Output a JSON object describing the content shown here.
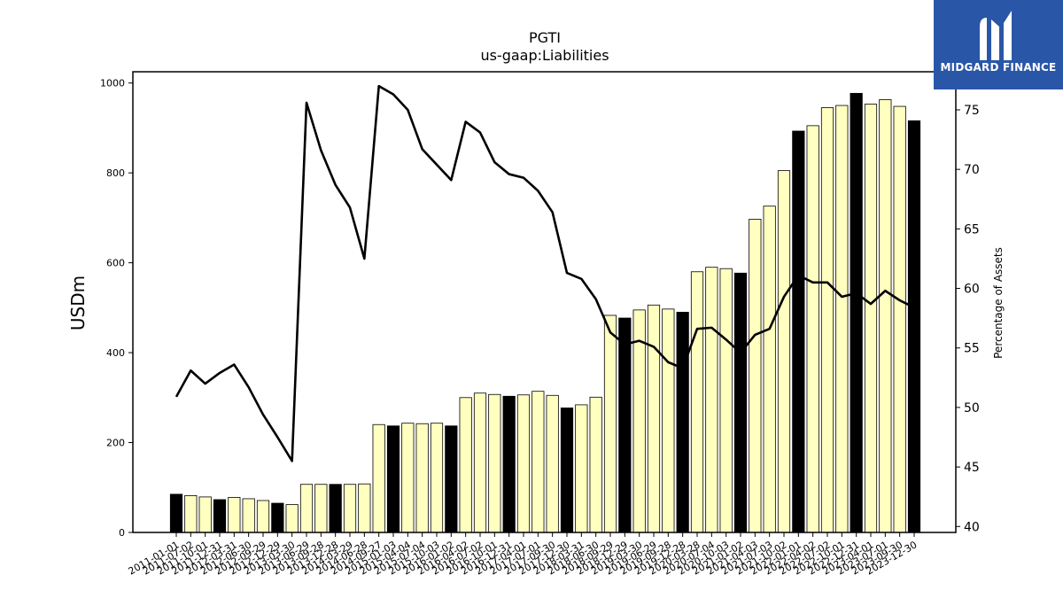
{
  "chart_data": {
    "type": "bar",
    "title": "PGTI",
    "subtitle": "us-gaap:Liabilities",
    "ylabel": "USDm",
    "y2label": "Percentage of Assets",
    "ylim": [
      0,
      1025
    ],
    "y2lim": [
      39.5,
      78.2
    ],
    "yticks": [
      0,
      200,
      400,
      600,
      800,
      1000
    ],
    "y2ticks": [
      40,
      45,
      50,
      55,
      60,
      65,
      70,
      75
    ],
    "categories": [
      "2011-01-01",
      "2011-07-02",
      "2011-10-01",
      "2011-12-31",
      "2012-03-31",
      "2012-06-30",
      "2012-09-29",
      "2012-12-29",
      "2013-03-30",
      "2013-06-29",
      "2013-09-28",
      "2013-12-28",
      "2014-03-29",
      "2014-06-28",
      "2014-09-27",
      "2015-01-03",
      "2015-04-04",
      "2015-07-04",
      "2015-10-03",
      "2016-01-02",
      "2016-04-02",
      "2016-07-02",
      "2016-10-01",
      "2016-12-31",
      "2017-04-01",
      "2017-07-01",
      "2017-09-30",
      "2017-12-30",
      "2018-03-31",
      "2018-06-30",
      "2018-09-29",
      "2018-12-29",
      "2019-03-30",
      "2019-06-29",
      "2019-09-28",
      "2019-12-28",
      "2020-03-28",
      "2020-07-04",
      "2020-10-03",
      "2021-01-02",
      "2021-04-03",
      "2021-07-03",
      "2021-10-02",
      "2022-01-01",
      "2022-04-02",
      "2022-07-02",
      "2022-10-01",
      "2022-12-31",
      "2023-04-01",
      "2023-07-01",
      "2023-09-30",
      "2023-12-30"
    ],
    "xlabels_shown": [
      "2011-01-01",
      "2011-07-02",
      "2011-10-01",
      "2011-12-31",
      "2012-03-31",
      "2012-06-30",
      "2012-09-29",
      "2012-12-29",
      "2013-03-30",
      "2013-06-29",
      "2013-09-28",
      "2013-12-28",
      "2014-03-29",
      "2014-06-28",
      "2014-09-27",
      "2015-01-03",
      "2015-04-04",
      "2015-07-04",
      "2015-10-03",
      "2016-01-02",
      "2016-04-02",
      "2016-07-02",
      "2016-10-01",
      "2016-12-31",
      "2017-04-01",
      "2017-07-01",
      "2017-09-30",
      "2017-12-30",
      "2018-03-31",
      "2018-06-30",
      "2018-09-29",
      "2018-12-29",
      "2019-03-30",
      "2019-06-29",
      "2019-09-28",
      "2019-12-28",
      "2020-03-28",
      "2020-07-04",
      "2020-10-03",
      "2021-01-02",
      "2021-04-03",
      "2021-07-03",
      "2021-10-02",
      "2022-01-01",
      "2022-04-02",
      "2022-07-02",
      "2022-10-01",
      "2022-12-31",
      "2023-04-01",
      "2023-07-01",
      "2023-09-30",
      "2023-12-30"
    ],
    "series": [
      {
        "kind": "bar",
        "values": [
          85,
          82,
          79,
          73,
          78,
          75,
          71,
          65,
          62,
          107,
          107,
          107,
          107,
          108,
          240,
          237,
          243,
          242,
          243,
          237,
          300,
          310,
          307,
          303,
          306,
          314,
          305,
          277,
          284,
          301,
          483,
          477,
          495,
          506,
          497,
          490,
          580,
          590,
          587,
          577,
          697,
          726,
          805,
          893,
          905,
          945,
          950,
          977,
          953,
          963,
          948,
          916
        ],
        "highlight": [
          true,
          false,
          false,
          true,
          false,
          false,
          false,
          true,
          false,
          false,
          false,
          true,
          false,
          false,
          false,
          true,
          false,
          false,
          false,
          true,
          false,
          false,
          false,
          true,
          false,
          false,
          false,
          true,
          false,
          false,
          false,
          true,
          false,
          false,
          false,
          true,
          false,
          false,
          false,
          true,
          false,
          false,
          false,
          true,
          false,
          false,
          false,
          true,
          false,
          false,
          false,
          true
        ]
      },
      {
        "kind": "line",
        "axis": "right",
        "values": [
          50.9,
          53.1,
          52.0,
          52.9,
          53.6,
          51.7,
          49.4,
          47.5,
          45.5,
          75.6,
          71.6,
          68.7,
          66.8,
          62.5,
          77.0,
          76.3,
          75.0,
          71.7,
          70.4,
          69.1,
          74.0,
          73.1,
          70.6,
          69.6,
          69.3,
          68.2,
          66.4,
          61.3,
          60.8,
          59.1,
          56.3,
          55.3,
          55.6,
          55.1,
          53.8,
          53.3,
          56.6,
          56.7,
          55.7,
          54.6,
          56.1,
          56.6,
          59.3,
          61.1,
          60.5,
          60.5,
          59.3,
          59.6,
          58.7,
          59.8,
          59.0,
          58.4
        ]
      }
    ],
    "colors": {
      "bar_fill": "#ffffc0",
      "bar_highlight": "#000000",
      "bar_edge": "#000000",
      "line": "#000000"
    }
  },
  "logo": {
    "text": "MIDGARD FINANCE",
    "background": "#2a56a8"
  }
}
